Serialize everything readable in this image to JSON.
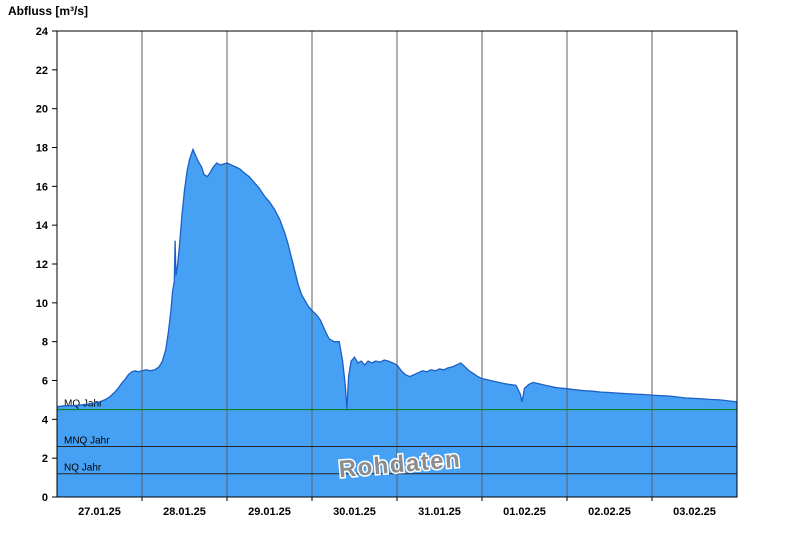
{
  "chart_data": {
    "type": "area",
    "title": "Abfluss [m³/s]",
    "ylabel": "Abfluss [m³/s]",
    "xlabel": "",
    "ylim": [
      0,
      24
    ],
    "ytick_step": 2,
    "grid": "vertical-daily",
    "legend_position": "none",
    "watermark": "Rohdaten",
    "x_days": [
      "27.01.25",
      "28.01.25",
      "29.01.25",
      "30.01.25",
      "31.01.25",
      "01.02.25",
      "02.02.25",
      "03.02.25"
    ],
    "x_unit": "days-from-27.01.25-00:00",
    "colors": {
      "fill": "#46a1f4",
      "line": "#1d5fc4",
      "grid": "#606060",
      "frame": "#000000",
      "mq_green": "#008000",
      "ref_dark": "#262626",
      "watermark": "#8c8c8c"
    },
    "reference_lines": [
      {
        "label": "MQ Jahr",
        "value": 4.5,
        "color": "#008000"
      },
      {
        "label": "MNQ Jahr",
        "value": 2.6,
        "color": "#262626"
      },
      {
        "label": "NQ Jahr",
        "value": 1.2,
        "color": "#262626"
      }
    ],
    "series": [
      {
        "name": "Abfluss Rohdaten",
        "points": [
          [
            0.0,
            4.65
          ],
          [
            0.1,
            4.7
          ],
          [
            0.2,
            4.7
          ],
          [
            0.3,
            4.75
          ],
          [
            0.4,
            4.8
          ],
          [
            0.5,
            4.9
          ],
          [
            0.56,
            5.0
          ],
          [
            0.62,
            5.15
          ],
          [
            0.68,
            5.4
          ],
          [
            0.72,
            5.6
          ],
          [
            0.76,
            5.85
          ],
          [
            0.8,
            6.05
          ],
          [
            0.84,
            6.3
          ],
          [
            0.88,
            6.45
          ],
          [
            0.92,
            6.5
          ],
          [
            0.96,
            6.45
          ],
          [
            1.0,
            6.5
          ],
          [
            1.05,
            6.55
          ],
          [
            1.1,
            6.5
          ],
          [
            1.15,
            6.55
          ],
          [
            1.2,
            6.7
          ],
          [
            1.24,
            7.0
          ],
          [
            1.28,
            7.6
          ],
          [
            1.31,
            8.5
          ],
          [
            1.34,
            9.6
          ],
          [
            1.36,
            10.6
          ],
          [
            1.38,
            11.1
          ],
          [
            1.39,
            13.2
          ],
          [
            1.4,
            11.4
          ],
          [
            1.42,
            12.0
          ],
          [
            1.44,
            12.9
          ],
          [
            1.47,
            14.5
          ],
          [
            1.5,
            15.8
          ],
          [
            1.53,
            16.8
          ],
          [
            1.56,
            17.4
          ],
          [
            1.6,
            17.9
          ],
          [
            1.63,
            17.6
          ],
          [
            1.66,
            17.3
          ],
          [
            1.7,
            17.0
          ],
          [
            1.73,
            16.6
          ],
          [
            1.77,
            16.5
          ],
          [
            1.8,
            16.7
          ],
          [
            1.84,
            17.0
          ],
          [
            1.88,
            17.2
          ],
          [
            1.92,
            17.1
          ],
          [
            1.96,
            17.15
          ],
          [
            2.0,
            17.2
          ],
          [
            2.05,
            17.1
          ],
          [
            2.1,
            17.0
          ],
          [
            2.15,
            16.9
          ],
          [
            2.2,
            16.7
          ],
          [
            2.26,
            16.5
          ],
          [
            2.32,
            16.2
          ],
          [
            2.38,
            15.9
          ],
          [
            2.44,
            15.5
          ],
          [
            2.5,
            15.2
          ],
          [
            2.56,
            14.8
          ],
          [
            2.62,
            14.3
          ],
          [
            2.68,
            13.6
          ],
          [
            2.72,
            13.0
          ],
          [
            2.76,
            12.3
          ],
          [
            2.8,
            11.6
          ],
          [
            2.84,
            10.9
          ],
          [
            2.88,
            10.4
          ],
          [
            2.92,
            10.1
          ],
          [
            2.96,
            9.8
          ],
          [
            3.0,
            9.6
          ],
          [
            3.05,
            9.4
          ],
          [
            3.1,
            9.1
          ],
          [
            3.15,
            8.6
          ],
          [
            3.2,
            8.15
          ],
          [
            3.26,
            8.0
          ],
          [
            3.32,
            8.0
          ],
          [
            3.36,
            7.0
          ],
          [
            3.39,
            5.8
          ],
          [
            3.41,
            4.55
          ],
          [
            3.43,
            6.2
          ],
          [
            3.46,
            7.0
          ],
          [
            3.5,
            7.2
          ],
          [
            3.54,
            6.9
          ],
          [
            3.58,
            7.0
          ],
          [
            3.62,
            6.8
          ],
          [
            3.66,
            7.0
          ],
          [
            3.7,
            6.9
          ],
          [
            3.75,
            7.0
          ],
          [
            3.8,
            6.95
          ],
          [
            3.85,
            7.05
          ],
          [
            3.9,
            7.0
          ],
          [
            3.95,
            6.9
          ],
          [
            4.0,
            6.8
          ],
          [
            4.05,
            6.5
          ],
          [
            4.1,
            6.3
          ],
          [
            4.15,
            6.2
          ],
          [
            4.2,
            6.3
          ],
          [
            4.25,
            6.4
          ],
          [
            4.3,
            6.5
          ],
          [
            4.35,
            6.45
          ],
          [
            4.4,
            6.55
          ],
          [
            4.45,
            6.5
          ],
          [
            4.5,
            6.6
          ],
          [
            4.55,
            6.55
          ],
          [
            4.6,
            6.65
          ],
          [
            4.65,
            6.7
          ],
          [
            4.7,
            6.8
          ],
          [
            4.75,
            6.9
          ],
          [
            4.8,
            6.7
          ],
          [
            4.85,
            6.5
          ],
          [
            4.9,
            6.35
          ],
          [
            4.95,
            6.2
          ],
          [
            5.0,
            6.1
          ],
          [
            5.05,
            6.05
          ],
          [
            5.1,
            6.0
          ],
          [
            5.15,
            5.95
          ],
          [
            5.2,
            5.9
          ],
          [
            5.25,
            5.85
          ],
          [
            5.32,
            5.8
          ],
          [
            5.4,
            5.75
          ],
          [
            5.45,
            5.3
          ],
          [
            5.47,
            4.9
          ],
          [
            5.5,
            5.6
          ],
          [
            5.55,
            5.8
          ],
          [
            5.6,
            5.9
          ],
          [
            5.65,
            5.85
          ],
          [
            5.7,
            5.8
          ],
          [
            5.75,
            5.75
          ],
          [
            5.8,
            5.7
          ],
          [
            5.85,
            5.65
          ],
          [
            5.9,
            5.62
          ],
          [
            5.95,
            5.6
          ],
          [
            6.0,
            5.58
          ],
          [
            6.1,
            5.52
          ],
          [
            6.2,
            5.48
          ],
          [
            6.3,
            5.45
          ],
          [
            6.4,
            5.4
          ],
          [
            6.5,
            5.38
          ],
          [
            6.6,
            5.35
          ],
          [
            6.7,
            5.32
          ],
          [
            6.8,
            5.3
          ],
          [
            6.9,
            5.28
          ],
          [
            7.0,
            5.25
          ],
          [
            7.1,
            5.22
          ],
          [
            7.2,
            5.2
          ],
          [
            7.3,
            5.15
          ],
          [
            7.4,
            5.1
          ],
          [
            7.5,
            5.08
          ],
          [
            7.6,
            5.05
          ],
          [
            7.7,
            5.02
          ],
          [
            7.8,
            5.0
          ],
          [
            7.9,
            4.95
          ],
          [
            8.0,
            4.9
          ]
        ]
      }
    ]
  }
}
